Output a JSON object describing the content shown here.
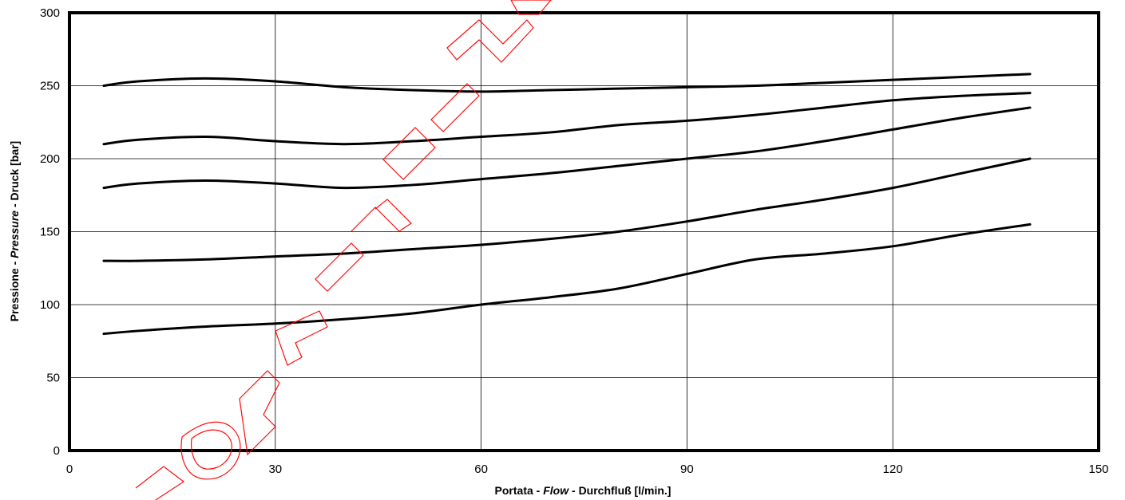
{
  "chart_data": {
    "type": "line",
    "xlabel_parts": [
      "Portata - ",
      "Flow",
      " - Durchfluß [l/min.]"
    ],
    "ylabel_parts": [
      "Pressione - ",
      "Pressure",
      " - Druck [bar]"
    ],
    "xlim": [
      0,
      150
    ],
    "ylim": [
      0,
      300
    ],
    "xticks": [
      0,
      30,
      60,
      90,
      120,
      150
    ],
    "yticks": [
      0,
      50,
      100,
      150,
      200,
      250,
      300
    ],
    "grid": true,
    "series": [
      {
        "x": [
          5,
          10,
          20,
          30,
          40,
          50,
          60,
          70,
          80,
          90,
          100,
          110,
          120,
          130,
          140
        ],
        "values": [
          250,
          253,
          255,
          253,
          249,
          247,
          246,
          247,
          248,
          249,
          250,
          252,
          254,
          256,
          258
        ]
      },
      {
        "x": [
          5,
          10,
          20,
          30,
          40,
          50,
          60,
          70,
          80,
          90,
          100,
          110,
          120,
          130,
          140
        ],
        "values": [
          210,
          213,
          215,
          212,
          210,
          212,
          215,
          218,
          223,
          226,
          230,
          235,
          240,
          243,
          245
        ]
      },
      {
        "x": [
          5,
          10,
          20,
          30,
          40,
          50,
          60,
          70,
          80,
          90,
          100,
          110,
          120,
          130,
          140
        ],
        "values": [
          180,
          183,
          185,
          183,
          180,
          182,
          186,
          190,
          195,
          200,
          205,
          212,
          220,
          228,
          235
        ]
      },
      {
        "x": [
          5,
          10,
          20,
          30,
          40,
          50,
          60,
          70,
          80,
          90,
          100,
          110,
          120,
          130,
          140
        ],
        "values": [
          130,
          130,
          131,
          133,
          135,
          138,
          141,
          145,
          150,
          157,
          165,
          172,
          180,
          190,
          200
        ]
      },
      {
        "x": [
          5,
          10,
          20,
          30,
          40,
          50,
          60,
          70,
          80,
          90,
          100,
          110,
          120,
          130,
          140
        ],
        "values": [
          80,
          82,
          85,
          87,
          90,
          94,
          100,
          105,
          111,
          121,
          131,
          135,
          140,
          148,
          155
        ]
      }
    ]
  },
  "watermark": {
    "text": "CONFIDENTIAL INFORMATION",
    "color": "#ff0000"
  }
}
